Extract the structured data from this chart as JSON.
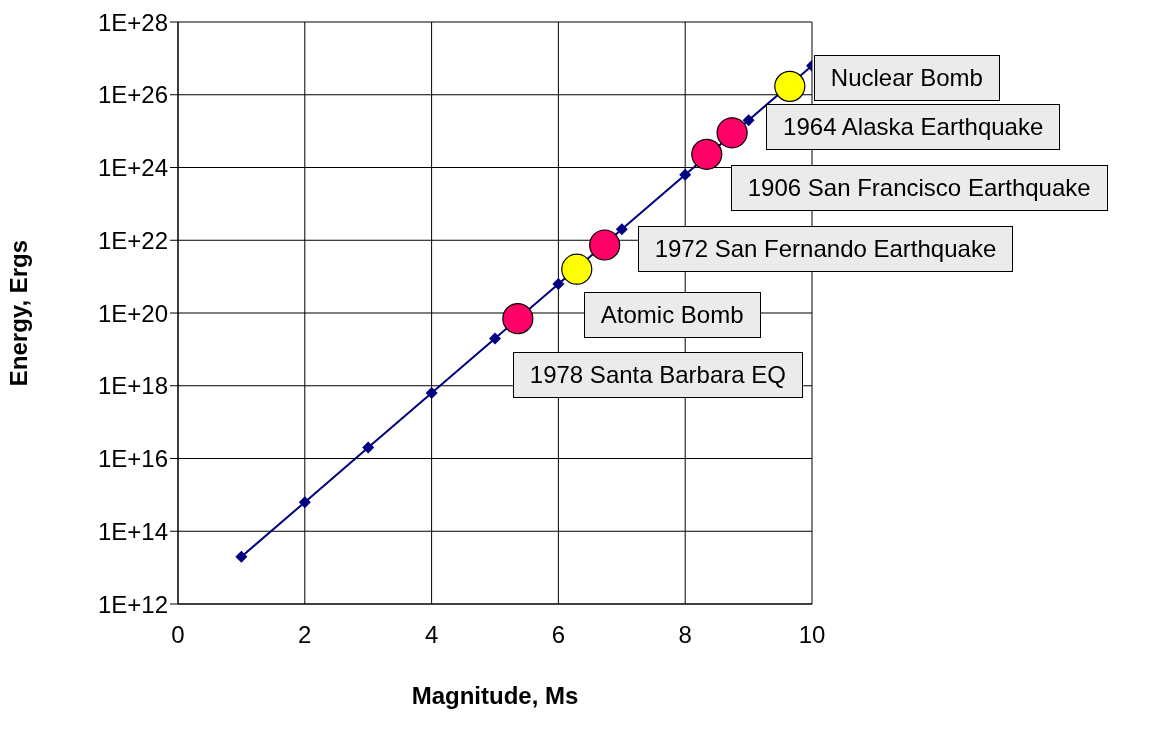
{
  "chart_data": {
    "type": "scatter",
    "xlabel": "Magnitude, Ms",
    "ylabel": "Energy, Ergs",
    "log": "y",
    "grid": true,
    "xlim": [
      0,
      10
    ],
    "xticks": [
      0,
      2,
      4,
      6,
      8,
      10
    ],
    "ylim": [
      1000000000000.0,
      1e+28
    ],
    "yticks": [
      {
        "value": 1000000000000.0,
        "label": "1E+12"
      },
      {
        "value": 100000000000000.0,
        "label": "1E+14"
      },
      {
        "value": 1e+16,
        "label": "1E+16"
      },
      {
        "value": 1e+18,
        "label": "1E+18"
      },
      {
        "value": 1e+20,
        "label": "1E+20"
      },
      {
        "value": 1e+22,
        "label": "1E+22"
      },
      {
        "value": 1e+24,
        "label": "1E+24"
      },
      {
        "value": 1e+26,
        "label": "1E+26"
      },
      {
        "value": 1e+28,
        "label": "1E+28"
      }
    ],
    "series": [
      {
        "type": "line",
        "color": "#000080",
        "marker": "diamond",
        "line_style": "solid",
        "x": [
          1,
          2,
          3,
          4,
          5,
          6,
          7,
          8,
          9,
          10
        ],
        "values": [
          20000000000000.0,
          630000000000000.0,
          2e+16,
          6.3e+17,
          2e+19,
          6.3e+20,
          2e+22,
          6.3e+23,
          2e+25,
          6.3e+26
        ]
      },
      {
        "color": "#ff0066",
        "marker": "circle",
        "x": [
          5.36,
          6.73,
          8.34,
          8.74
        ],
        "values": [
          7e+19,
          7.4e+21,
          2.3e+24,
          9e+24
        ]
      },
      {
        "color": "#ffff00",
        "marker": "circle",
        "x": [
          6.29,
          9.65
        ],
        "values": [
          1.6e+21,
          1.7e+26
        ]
      }
    ],
    "annotations": [
      {
        "text": "Nuclear Bomb",
        "x": 9.65,
        "y": 1.7e+26
      },
      {
        "text": "1964 Alaska Earthquake",
        "x": 8.74,
        "y": 9e+24
      },
      {
        "text": "1906 San Francisco Earthquake",
        "x": 8.34,
        "y": 2.3e+24
      },
      {
        "text": "1972 San Fernando Earthquake",
        "x": 6.73,
        "y": 7.4e+21
      },
      {
        "text": "Atomic Bomb",
        "x": 6.29,
        "y": 1.6e+21
      },
      {
        "text": "1978 Santa Barbara EQ",
        "x": 5.36,
        "y": 7e+19
      }
    ]
  }
}
